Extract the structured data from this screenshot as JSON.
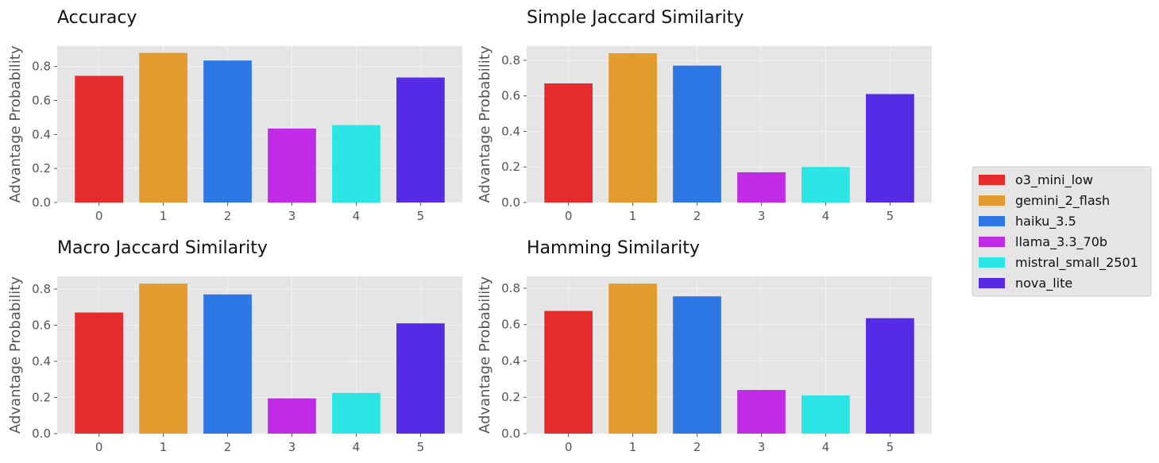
{
  "legend": {
    "entries": [
      {
        "label": "o3_mini_low",
        "color": "#E52B2B"
      },
      {
        "label": "gemini_2_flash",
        "color": "#E49B2D"
      },
      {
        "label": "haiku_3.5",
        "color": "#2E77E6"
      },
      {
        "label": "llama_3.3_70b",
        "color": "#C12BE6"
      },
      {
        "label": "mistral_small_2501",
        "color": "#2CE5E5"
      },
      {
        "label": "nova_lite",
        "color": "#552BE6"
      }
    ]
  },
  "chart_data": [
    {
      "type": "bar",
      "title": "Accuracy",
      "ylabel": "Advantage Probability",
      "xlabel": "",
      "categories": [
        "0",
        "1",
        "2",
        "3",
        "4",
        "5"
      ],
      "values": [
        0.745,
        0.88,
        0.835,
        0.435,
        0.455,
        0.735
      ],
      "ylim": [
        0,
        0.92
      ],
      "yticks": [
        "0.0",
        "0.2",
        "0.4",
        "0.6",
        "0.8"
      ],
      "grid": true
    },
    {
      "type": "bar",
      "title": "Simple Jaccard Similarity",
      "ylabel": "Advantage Probability",
      "xlabel": "",
      "categories": [
        "0",
        "1",
        "2",
        "3",
        "4",
        "5"
      ],
      "values": [
        0.67,
        0.84,
        0.77,
        0.17,
        0.2,
        0.61
      ],
      "ylim": [
        0,
        0.88
      ],
      "yticks": [
        "0.0",
        "0.2",
        "0.4",
        "0.6",
        "0.8"
      ],
      "grid": true
    },
    {
      "type": "bar",
      "title": "Macro Jaccard Similarity",
      "ylabel": "Advantage Probability",
      "xlabel": "",
      "categories": [
        "0",
        "1",
        "2",
        "3",
        "4",
        "5"
      ],
      "values": [
        0.67,
        0.83,
        0.77,
        0.195,
        0.225,
        0.61
      ],
      "ylim": [
        0,
        0.87
      ],
      "yticks": [
        "0.0",
        "0.2",
        "0.4",
        "0.6",
        "0.8"
      ],
      "grid": true
    },
    {
      "type": "bar",
      "title": "Hamming Similarity",
      "ylabel": "Advantage Probability",
      "xlabel": "",
      "categories": [
        "0",
        "1",
        "2",
        "3",
        "4",
        "5"
      ],
      "values": [
        0.675,
        0.825,
        0.755,
        0.24,
        0.21,
        0.635
      ],
      "ylim": [
        0,
        0.865
      ],
      "yticks": [
        "0.0",
        "0.2",
        "0.4",
        "0.6",
        "0.8"
      ],
      "grid": true
    }
  ]
}
